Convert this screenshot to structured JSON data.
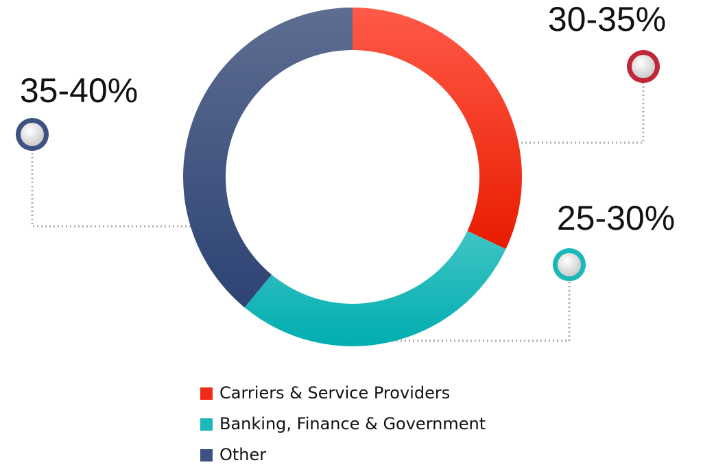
{
  "chart_data": {
    "type": "donut",
    "categories": [
      "Carriers & Service Providers",
      "Banking, Finance & Government",
      "Other"
    ],
    "values": [
      32,
      29,
      39
    ],
    "value_labels": [
      "30-35%",
      "25-30%",
      "35-40%"
    ],
    "colors": [
      "#f02a18",
      "#1ab8b8",
      "#3d5282"
    ],
    "legend": "bottom"
  }
}
